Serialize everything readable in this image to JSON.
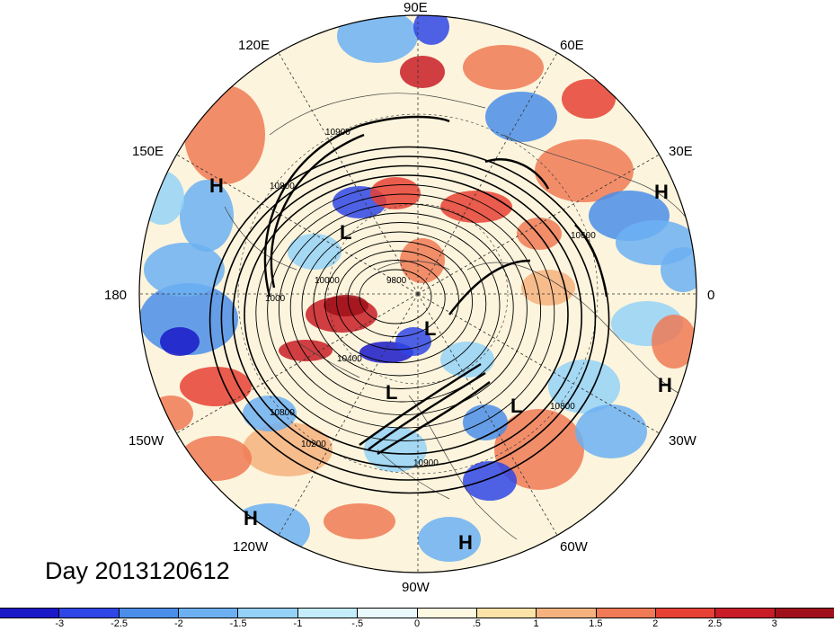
{
  "day_label": "Day 2013120612",
  "longitude_labels": [
    "90E",
    "60E",
    "30E",
    "0",
    "30W",
    "60W",
    "90W",
    "120W",
    "150W",
    "180",
    "150E",
    "120E"
  ],
  "pressure_centers": [
    "H",
    "H",
    "H",
    "H",
    "H",
    "L",
    "L",
    "L",
    "L",
    "L"
  ],
  "contour_labels": [
    "10900",
    "10800",
    "10000",
    "9800",
    "10400",
    "10200",
    "10800",
    "10800",
    "10900",
    "1000",
    "10600"
  ],
  "colorbar": {
    "colors": [
      "#1a19c8",
      "#2f47e6",
      "#4a8ee9",
      "#6cb0f2",
      "#94d2f7",
      "#c4ecfa",
      "#eafafc",
      "#fdf9e0",
      "#fbe3a8",
      "#f6b27e",
      "#f07a55",
      "#e64134",
      "#c81d26",
      "#a0101a"
    ],
    "tick_labels": [
      "-3",
      "-2.5",
      "-2",
      "-1.5",
      "-1",
      "-.5",
      "0",
      ".5",
      "1",
      "1.5",
      "2",
      "2.5",
      "3"
    ]
  }
}
